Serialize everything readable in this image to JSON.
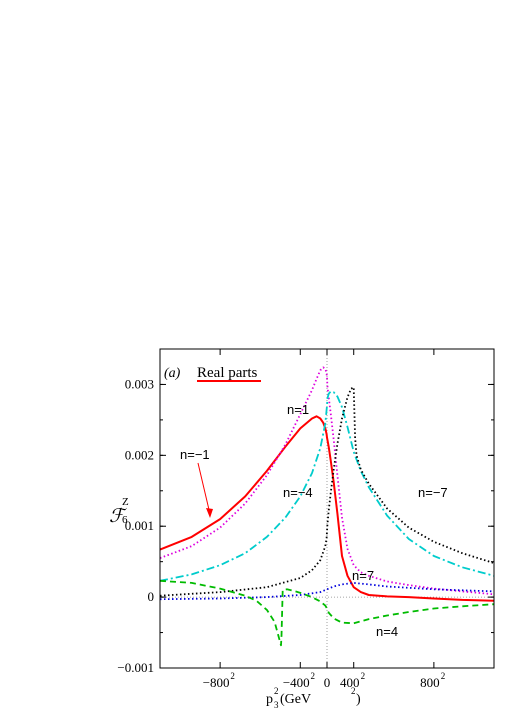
{
  "chart_data": {
    "type": "line",
    "panel_label": "(a)",
    "title": "Real parts",
    "ylabel": "ℱ",
    "ylabel_super": "Z",
    "ylabel_sub": "6",
    "xlabel": {
      "base": "p",
      "sub": "3",
      "sup": "2",
      "units": " (GeV",
      "units_sup": "2",
      "units_close": ")"
    },
    "x_scale": "signed-square",
    "xlim": [
      -1000,
      1000
    ],
    "ylim": [
      -0.001,
      0.0035
    ],
    "grid": false,
    "zero_lines": true,
    "x_ticks": [
      {
        "value": -800,
        "label": "−800",
        "sup": "2"
      },
      {
        "value": -400,
        "label": "−400",
        "sup": "2"
      },
      {
        "value": 0,
        "label": "0",
        "sup": ""
      },
      {
        "value": 400,
        "label": "400",
        "sup": "2"
      },
      {
        "value": 800,
        "label": "800",
        "sup": "2"
      }
    ],
    "y_ticks": [
      {
        "value": -0.001,
        "label": "−0.001"
      },
      {
        "value": 0,
        "label": "0"
      },
      {
        "value": 0.001,
        "label": "0.001"
      },
      {
        "value": 0.002,
        "label": "0.002"
      },
      {
        "value": 0.003,
        "label": "0.003"
      }
    ],
    "series": [
      {
        "name": "n=−1",
        "color": "#ff0000",
        "style": "solid",
        "x": [
          -1000,
          -900,
          -800,
          -700,
          -600,
          -500,
          -400,
          -300,
          -250,
          -200,
          -150,
          -100,
          -50,
          0,
          50,
          100,
          150,
          200,
          250,
          300,
          350,
          400,
          450,
          500,
          600,
          700,
          800,
          900,
          1000
        ],
        "y": [
          0.00067,
          0.00085,
          0.0011,
          0.00142,
          0.00178,
          0.00212,
          0.00238,
          0.00252,
          0.00255,
          0.00252,
          0.00246,
          0.00238,
          0.0023,
          0.00225,
          0.00222,
          0.00212,
          0.00192,
          0.00162,
          0.00118,
          0.00058,
          0.0003,
          0.00014,
          7e-05,
          3e-05,
          1e-05,
          0.0,
          -2e-05,
          -4e-05,
          -5e-05
        ]
      },
      {
        "name": "n=1",
        "color": "#dd00dd",
        "style": "dotted",
        "x": [
          -1000,
          -900,
          -800,
          -700,
          -600,
          -500,
          -400,
          -300,
          -250,
          -200,
          -150,
          -100,
          -50,
          0,
          50,
          100,
          150,
          200,
          250,
          300,
          350,
          400,
          450,
          500,
          600,
          700,
          800,
          900,
          1000
        ],
        "y": [
          0.00055,
          0.00072,
          0.00098,
          0.00132,
          0.00172,
          0.00215,
          0.00258,
          0.00292,
          0.00308,
          0.0032,
          0.00324,
          0.00322,
          0.00316,
          0.0031,
          0.00298,
          0.00282,
          0.00258,
          0.00222,
          0.00172,
          0.00112,
          0.00068,
          0.00045,
          0.00035,
          0.0003,
          0.00022,
          0.00017,
          0.00012,
          8e-05,
          4e-05
        ]
      },
      {
        "name": "n=−4",
        "color": "#00cccc",
        "style": "dashdot",
        "x": [
          -1000,
          -900,
          -800,
          -700,
          -600,
          -500,
          -400,
          -300,
          -200,
          -100,
          0,
          50,
          100,
          150,
          200,
          250,
          300,
          350,
          400,
          450,
          500,
          600,
          700,
          800,
          900,
          1000
        ],
        "y": [
          0.00023,
          0.00032,
          0.00045,
          0.00062,
          0.00085,
          0.00112,
          0.00142,
          0.00175,
          0.0021,
          0.00245,
          0.0027,
          0.0028,
          0.00287,
          0.0029,
          0.00289,
          0.00283,
          0.00268,
          0.0024,
          0.00205,
          0.00178,
          0.00155,
          0.00115,
          0.00082,
          0.00058,
          0.00042,
          0.0003
        ]
      },
      {
        "name": "n=−7",
        "color": "#000000",
        "style": "dotted",
        "x": [
          -1000,
          -800,
          -600,
          -400,
          -300,
          -200,
          -100,
          -50,
          0,
          50,
          100,
          150,
          200,
          250,
          300,
          350,
          380,
          400,
          410,
          420,
          450,
          500,
          600,
          700,
          800,
          900,
          1000
        ],
        "y": [
          2e-05,
          7e-05,
          0.00014,
          0.00027,
          0.00038,
          0.00052,
          0.00072,
          0.00083,
          0.00093,
          0.00102,
          0.00122,
          0.00148,
          0.0018,
          0.00216,
          0.00252,
          0.00282,
          0.00294,
          0.00296,
          0.00225,
          0.002,
          0.0018,
          0.0016,
          0.00125,
          0.00098,
          0.00078,
          0.00062,
          0.00048
        ]
      },
      {
        "name": "n=7",
        "color": "#0000dd",
        "style": "dotted",
        "x": [
          -1000,
          -800,
          -600,
          -400,
          -200,
          0,
          200,
          300,
          400,
          500,
          600,
          800,
          1000
        ],
        "y": [
          -3e-05,
          -2e-05,
          0.0,
          3e-05,
          7e-05,
          0.00011,
          0.00015,
          0.00018,
          0.0002,
          0.00018,
          0.00015,
          0.00011,
          8e-05
        ]
      },
      {
        "name": "n=4",
        "color": "#00bb00",
        "style": "dashed",
        "x": [
          -1000,
          -900,
          -800,
          -700,
          -650,
          -600,
          -560,
          -525,
          -522,
          -515,
          -490,
          -450,
          -400,
          -300,
          -200,
          -100,
          0,
          100,
          200,
          300,
          400,
          500,
          600,
          700,
          800,
          900,
          1000
        ],
        "y": [
          0.00023,
          0.0002,
          0.00012,
          2e-05,
          -5e-05,
          -0.00018,
          -0.00035,
          -0.00068,
          -0.00055,
          0.0001,
          0.00011,
          9e-05,
          6e-05,
          0.0,
          -6e-05,
          -0.00012,
          -0.00016,
          -0.00022,
          -0.0003,
          -0.00036,
          -0.00037,
          -0.00031,
          -0.00026,
          -0.00021,
          -0.00016,
          -0.00013,
          -0.0001
        ]
      }
    ],
    "annotations": [
      {
        "text": "n=1"
      },
      {
        "text": "n=−1"
      },
      {
        "text": "n=−4"
      },
      {
        "text": "n=−7"
      },
      {
        "text": "n=7"
      },
      {
        "text": "n=4"
      }
    ]
  }
}
